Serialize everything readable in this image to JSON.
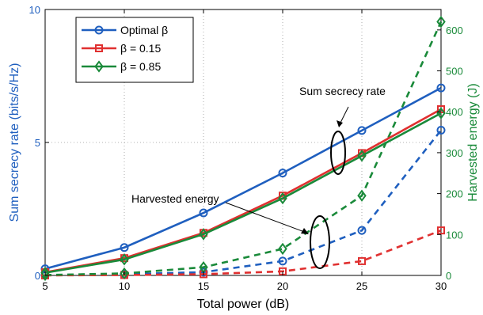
{
  "chart_data": {
    "type": "line",
    "x": [
      5,
      10,
      15,
      20,
      25,
      30
    ],
    "xticks": [
      "5",
      "10",
      "15",
      "20",
      "25",
      "30"
    ],
    "xlim": [
      5,
      30
    ],
    "xlabel": "Total power (dB)",
    "left_axis": {
      "label": "Sum secrecy rate (bits/s/Hz)",
      "ylim": [
        0,
        10
      ],
      "ticks": [
        "0",
        "5",
        "10"
      ],
      "tick_values": [
        0,
        5,
        10
      ],
      "color": "#1f5fbf"
    },
    "right_axis": {
      "label": "Harvested energy (J)",
      "ylim": [
        0,
        650
      ],
      "ticks": [
        "0",
        "100",
        "200",
        "300",
        "400",
        "500",
        "600"
      ],
      "tick_values": [
        0,
        100,
        200,
        300,
        400,
        500,
        600
      ],
      "color": "#1a8a3a"
    },
    "grid": true,
    "legend_position": "top-left",
    "series": [
      {
        "name": "Optimal β",
        "axis": "left",
        "style": "solid",
        "marker": "circle",
        "color": "#1f5fbf",
        "values": [
          0.25,
          1.05,
          2.35,
          3.85,
          5.45,
          7.05
        ]
      },
      {
        "name": "β = 0.15",
        "axis": "left",
        "style": "solid",
        "marker": "square",
        "color": "#e03030",
        "values": [
          0.12,
          0.65,
          1.6,
          3.0,
          4.6,
          6.25
        ]
      },
      {
        "name": "β = 0.85",
        "axis": "left",
        "style": "solid",
        "marker": "diamond",
        "color": "#1a8a3a",
        "values": [
          0.1,
          0.6,
          1.55,
          2.9,
          4.5,
          6.1
        ]
      },
      {
        "name": "",
        "axis": "right",
        "style": "dashed",
        "marker": "circle",
        "color": "#1f5fbf",
        "values": [
          1,
          3,
          8,
          35,
          110,
          355
        ]
      },
      {
        "name": "",
        "axis": "right",
        "style": "dashed",
        "marker": "square",
        "color": "#e03030",
        "values": [
          0,
          1,
          3,
          10,
          35,
          110
        ]
      },
      {
        "name": "",
        "axis": "right",
        "style": "dashed",
        "marker": "diamond",
        "color": "#1a8a3a",
        "values": [
          1,
          5,
          20,
          65,
          195,
          620
        ]
      }
    ],
    "annotations": [
      {
        "text": "Sum secrecy rate"
      },
      {
        "text": "Harvested energy"
      }
    ]
  }
}
